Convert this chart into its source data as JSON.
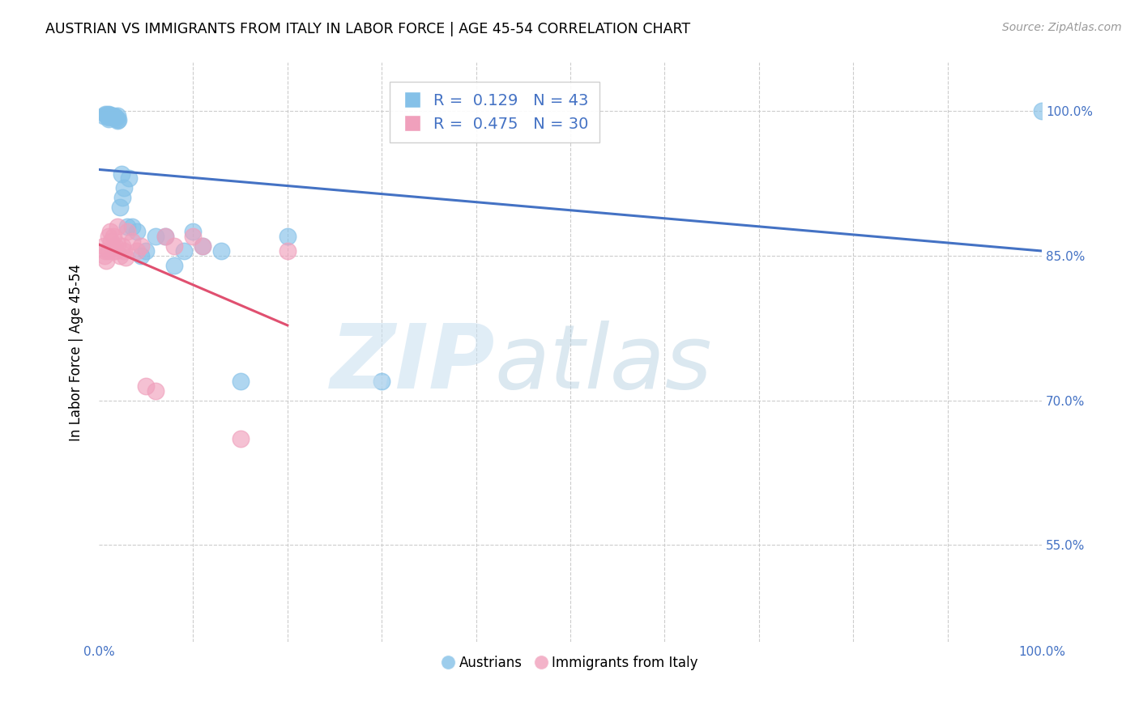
{
  "title": "AUSTRIAN VS IMMIGRANTS FROM ITALY IN LABOR FORCE | AGE 45-54 CORRELATION CHART",
  "source": "Source: ZipAtlas.com",
  "ylabel": "In Labor Force | Age 45-54",
  "xlim": [
    0.0,
    1.0
  ],
  "ylim": [
    0.45,
    1.05
  ],
  "ytick_positions": [
    0.55,
    0.7,
    0.85,
    1.0
  ],
  "ytick_labels": [
    "55.0%",
    "70.0%",
    "85.0%",
    "100.0%"
  ],
  "blue_color": "#85C1E8",
  "pink_color": "#F0A0BC",
  "blue_line_color": "#4472C4",
  "pink_line_color": "#E05070",
  "blue_R": 0.129,
  "blue_N": 43,
  "pink_R": 0.475,
  "pink_N": 30,
  "austrians_x": [
    0.005,
    0.007,
    0.008,
    0.009,
    0.01,
    0.01,
    0.01,
    0.01,
    0.01,
    0.01,
    0.012,
    0.013,
    0.014,
    0.015,
    0.015,
    0.016,
    0.017,
    0.018,
    0.019,
    0.02,
    0.02,
    0.021,
    0.022,
    0.024,
    0.025,
    0.027,
    0.03,
    0.032,
    0.035,
    0.04,
    0.045,
    0.05,
    0.06,
    0.07,
    0.08,
    0.09,
    0.1,
    0.11,
    0.13,
    0.15,
    0.2,
    0.3,
    1.0
  ],
  "austrians_y": [
    0.995,
    0.997,
    0.996,
    0.996,
    0.997,
    0.996,
    0.995,
    0.994,
    0.993,
    0.992,
    0.996,
    0.995,
    0.994,
    0.995,
    0.994,
    0.993,
    0.994,
    0.993,
    0.992,
    0.995,
    0.99,
    0.991,
    0.9,
    0.935,
    0.91,
    0.92,
    0.88,
    0.93,
    0.88,
    0.875,
    0.85,
    0.855,
    0.87,
    0.87,
    0.84,
    0.855,
    0.875,
    0.86,
    0.855,
    0.72,
    0.87,
    0.72,
    1.0
  ],
  "italy_x": [
    0.005,
    0.006,
    0.007,
    0.008,
    0.01,
    0.01,
    0.012,
    0.013,
    0.015,
    0.015,
    0.017,
    0.018,
    0.02,
    0.02,
    0.022,
    0.025,
    0.027,
    0.028,
    0.03,
    0.035,
    0.04,
    0.045,
    0.05,
    0.06,
    0.07,
    0.08,
    0.1,
    0.11,
    0.15,
    0.2
  ],
  "italy_y": [
    0.86,
    0.85,
    0.855,
    0.845,
    0.87,
    0.855,
    0.875,
    0.865,
    0.87,
    0.855,
    0.86,
    0.855,
    0.88,
    0.862,
    0.85,
    0.86,
    0.855,
    0.848,
    0.875,
    0.865,
    0.855,
    0.86,
    0.715,
    0.71,
    0.87,
    0.86,
    0.87,
    0.86,
    0.66,
    0.855
  ]
}
